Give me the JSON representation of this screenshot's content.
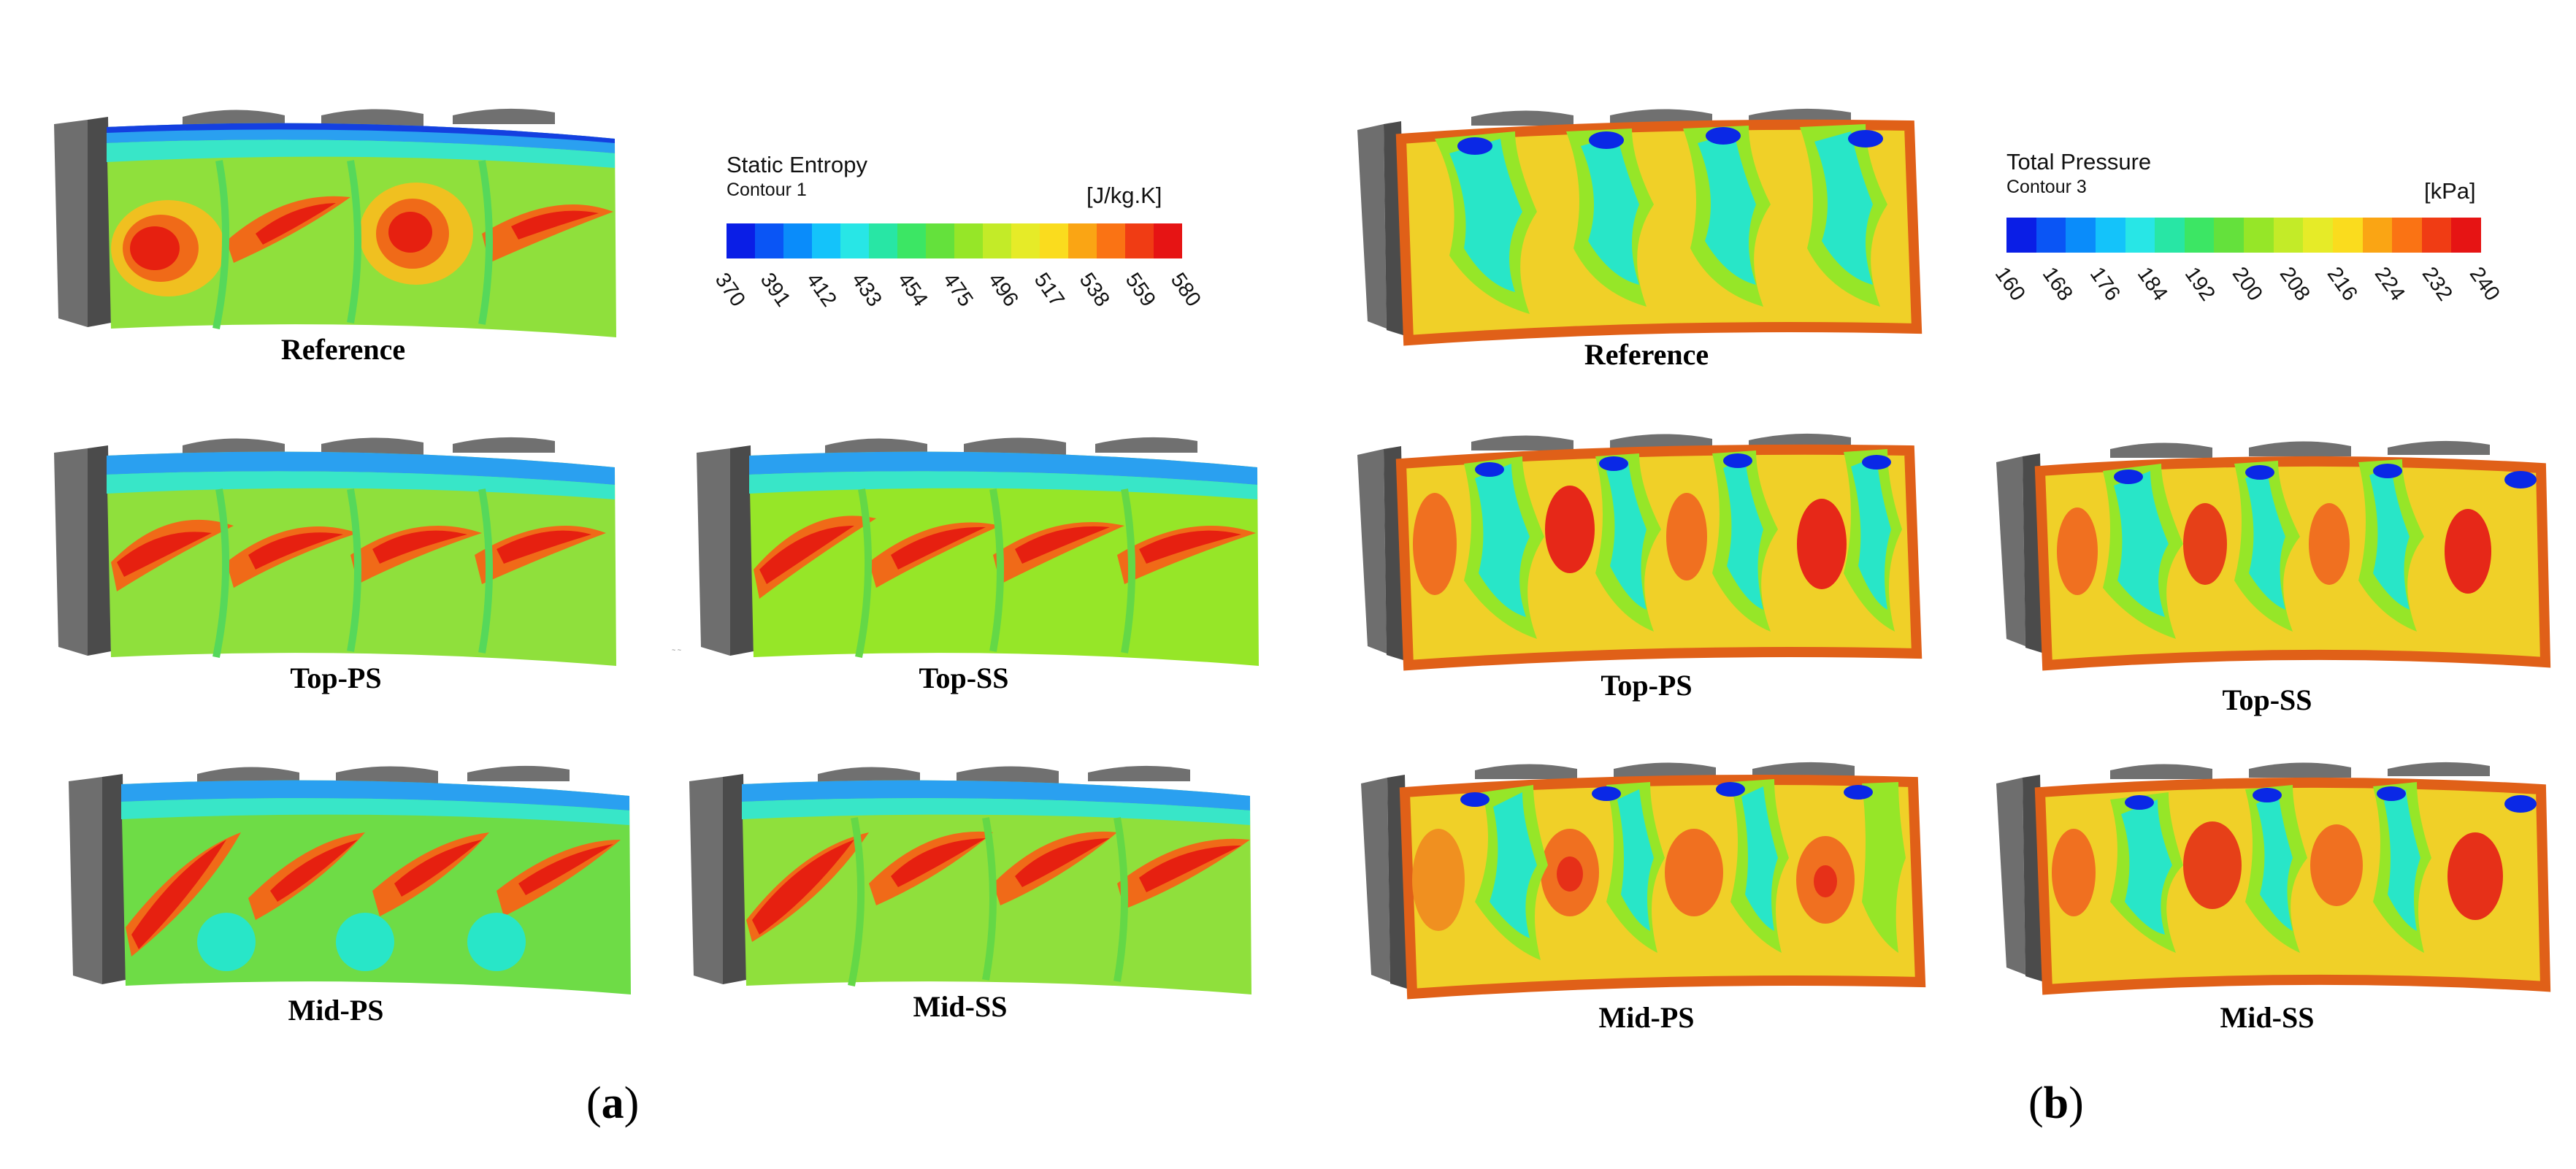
{
  "figure_a": {
    "label": "a",
    "colorbar": {
      "title": "Static Entropy",
      "subtitle": "Contour 1",
      "unit": "[J/kg.K]",
      "ticks": [
        "370",
        "391",
        "412",
        "433",
        "454",
        "475",
        "496",
        "517",
        "538",
        "559",
        "580"
      ]
    },
    "cases": [
      {
        "id": "reference",
        "label": "Reference"
      },
      {
        "id": "top-ps",
        "label": "Top-PS"
      },
      {
        "id": "top-ss",
        "label": "Top-SS"
      },
      {
        "id": "mid-ps",
        "label": "Mid-PS"
      },
      {
        "id": "mid-ss",
        "label": "Mid-SS"
      }
    ]
  },
  "figure_b": {
    "label": "b",
    "colorbar": {
      "title": "Total Pressure",
      "subtitle": "Contour 3",
      "unit": "[kPa]",
      "ticks": [
        "160",
        "168",
        "176",
        "184",
        "192",
        "200",
        "208",
        "216",
        "224",
        "232",
        "240"
      ]
    },
    "cases": [
      {
        "id": "reference",
        "label": "Reference"
      },
      {
        "id": "top-ps",
        "label": "Top-PS"
      },
      {
        "id": "top-ss",
        "label": "Top-SS"
      },
      {
        "id": "mid-ps",
        "label": "Mid-PS"
      },
      {
        "id": "mid-ss",
        "label": "Mid-SS"
      }
    ]
  },
  "colormap": [
    "#0a1ee6",
    "#0a55f5",
    "#0a8cfa",
    "#14c3fa",
    "#28e6e6",
    "#28e6a5",
    "#3ce664",
    "#64e13c",
    "#96e628",
    "#c3eb28",
    "#e6eb28",
    "#fadc1e",
    "#faa514",
    "#fa7314",
    "#f03c14",
    "#e61414"
  ]
}
